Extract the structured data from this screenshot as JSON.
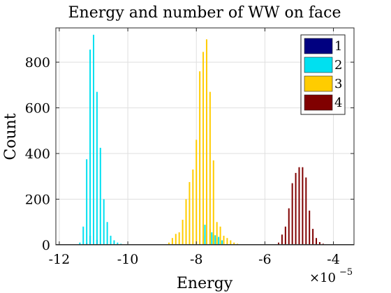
{
  "chart_data": {
    "type": "bar",
    "title": "Energy and number of WW on face",
    "xlabel": "Energy",
    "ylabel": "Count",
    "x_exponent_base": "×10",
    "x_exponent_power": "−5",
    "xlim": [
      -12.1,
      -3.4
    ],
    "ylim": [
      0,
      950
    ],
    "xticks": [
      -12,
      -10,
      -8,
      -6,
      -4
    ],
    "yticks": [
      0,
      200,
      400,
      600,
      800
    ],
    "grid": true,
    "legend_position": "top-right",
    "series": [
      {
        "name": "1",
        "color": "#000080",
        "x": [
          -11.2,
          -11.1,
          -11.0,
          -10.9,
          -10.8
        ],
        "values": [
          8,
          40,
          95,
          22,
          4
        ]
      },
      {
        "name": "2",
        "color": "#00e0f0",
        "x": [
          -11.4,
          -11.3,
          -11.2,
          -11.1,
          -11.0,
          -10.9,
          -10.8,
          -10.7,
          -10.6,
          -10.5,
          -10.4,
          -10.3,
          -10.2,
          -10.1,
          -10.0
        ],
        "values": [
          10,
          80,
          375,
          855,
          920,
          670,
          425,
          200,
          100,
          40,
          20,
          10,
          5,
          3,
          2
        ]
      },
      {
        "name": "3",
        "color": "#ffcc00",
        "x": [
          -8.8,
          -8.7,
          -8.6,
          -8.5,
          -8.4,
          -8.3,
          -8.2,
          -8.1,
          -8.0,
          -7.9,
          -7.8,
          -7.7,
          -7.6,
          -7.5,
          -7.4,
          -7.3,
          -7.2,
          -7.1,
          -7.0,
          -6.9,
          -6.8
        ],
        "values": [
          10,
          30,
          48,
          55,
          110,
          200,
          275,
          330,
          460,
          760,
          845,
          900,
          670,
          370,
          100,
          80,
          40,
          30,
          20,
          10,
          5
        ]
      },
      {
        "name": "4",
        "color": "#800000",
        "x": [
          -5.6,
          -5.5,
          -5.4,
          -5.3,
          -5.2,
          -5.1,
          -5.0,
          -4.9,
          -4.8,
          -4.7,
          -4.6,
          -4.5,
          -4.4,
          -4.3,
          -4.2
        ],
        "values": [
          10,
          45,
          80,
          160,
          270,
          315,
          340,
          340,
          295,
          150,
          70,
          30,
          12,
          5,
          3
        ]
      },
      {
        "name": "",
        "color": "#ffcc00",
        "x": [
          -7.8,
          -7.7,
          -7.6,
          -7.5,
          -7.4
        ],
        "values": [
          40,
          60,
          70,
          45,
          30
        ]
      },
      {
        "name": "",
        "color": "#00e0f0",
        "x": [
          -7.75,
          -7.55,
          -7.45,
          -7.35,
          -7.25
        ],
        "values": [
          88,
          55,
          42,
          35,
          20
        ]
      }
    ]
  }
}
